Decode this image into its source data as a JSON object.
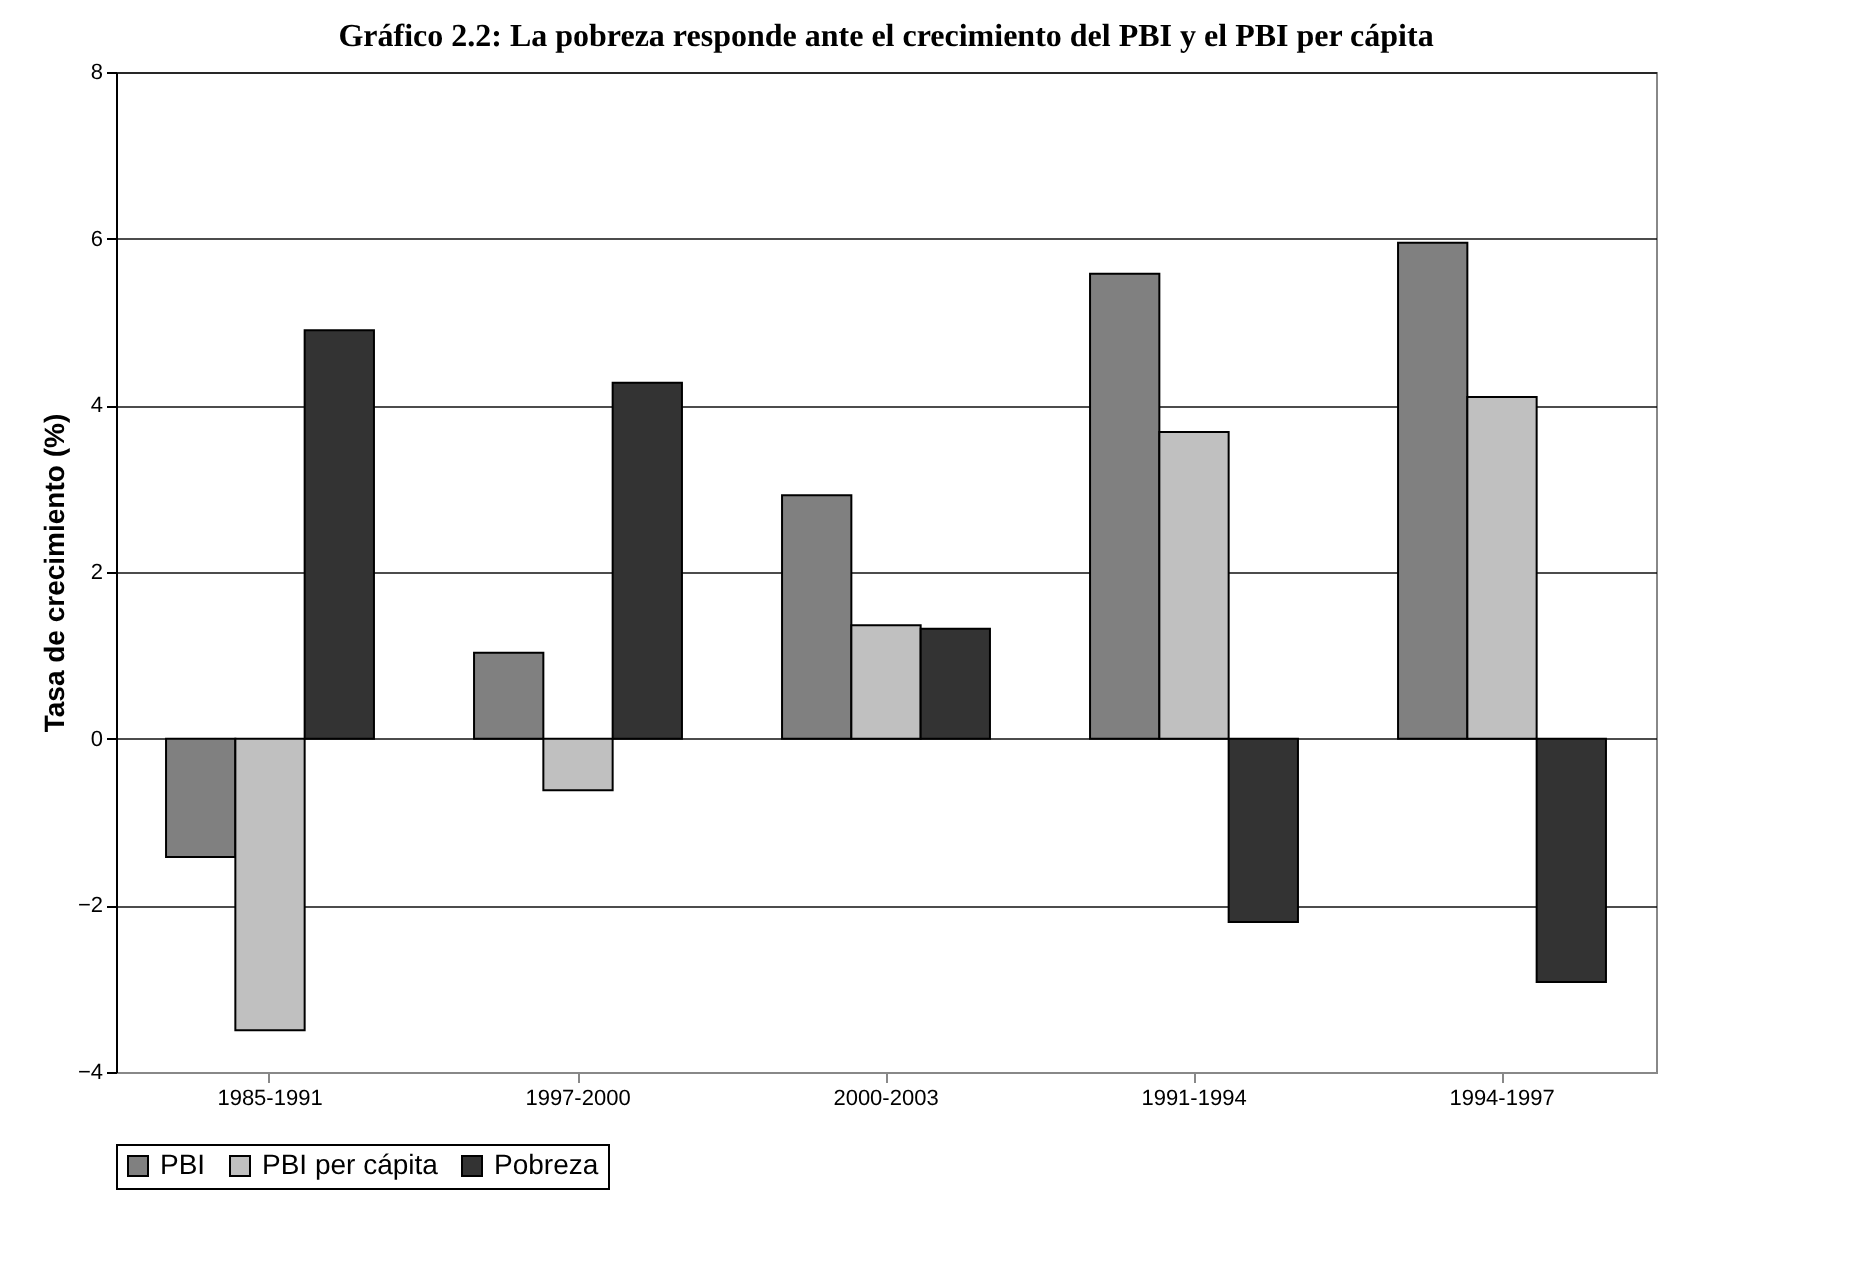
{
  "chart_data": {
    "type": "bar",
    "title": "Gráfico 2.2: La pobreza responde ante el crecimiento del PBI y el PBI per cápita",
    "ylabel": "Tasa de crecimiento (%)",
    "categories": [
      "1985-1991",
      "1997-2000",
      "2000-2003",
      "1991-1994",
      "1994-1997"
    ],
    "series": [
      {
        "name": "PBI",
        "color": "#808080",
        "values": [
          -1.42,
          1.03,
          2.92,
          5.58,
          5.95
        ]
      },
      {
        "name": "PBI per cápita",
        "color": "#c0c0c0",
        "values": [
          -3.5,
          -0.62,
          1.36,
          3.68,
          4.1
        ]
      },
      {
        "name": "Pobreza",
        "color": "#333333",
        "values": [
          4.9,
          4.27,
          1.32,
          -2.2,
          -2.92
        ]
      }
    ],
    "ylim": [
      -4,
      8
    ],
    "yticks": [
      -4,
      -2,
      0,
      2,
      4,
      6,
      8
    ],
    "grid": "y",
    "legend": "bottom"
  }
}
